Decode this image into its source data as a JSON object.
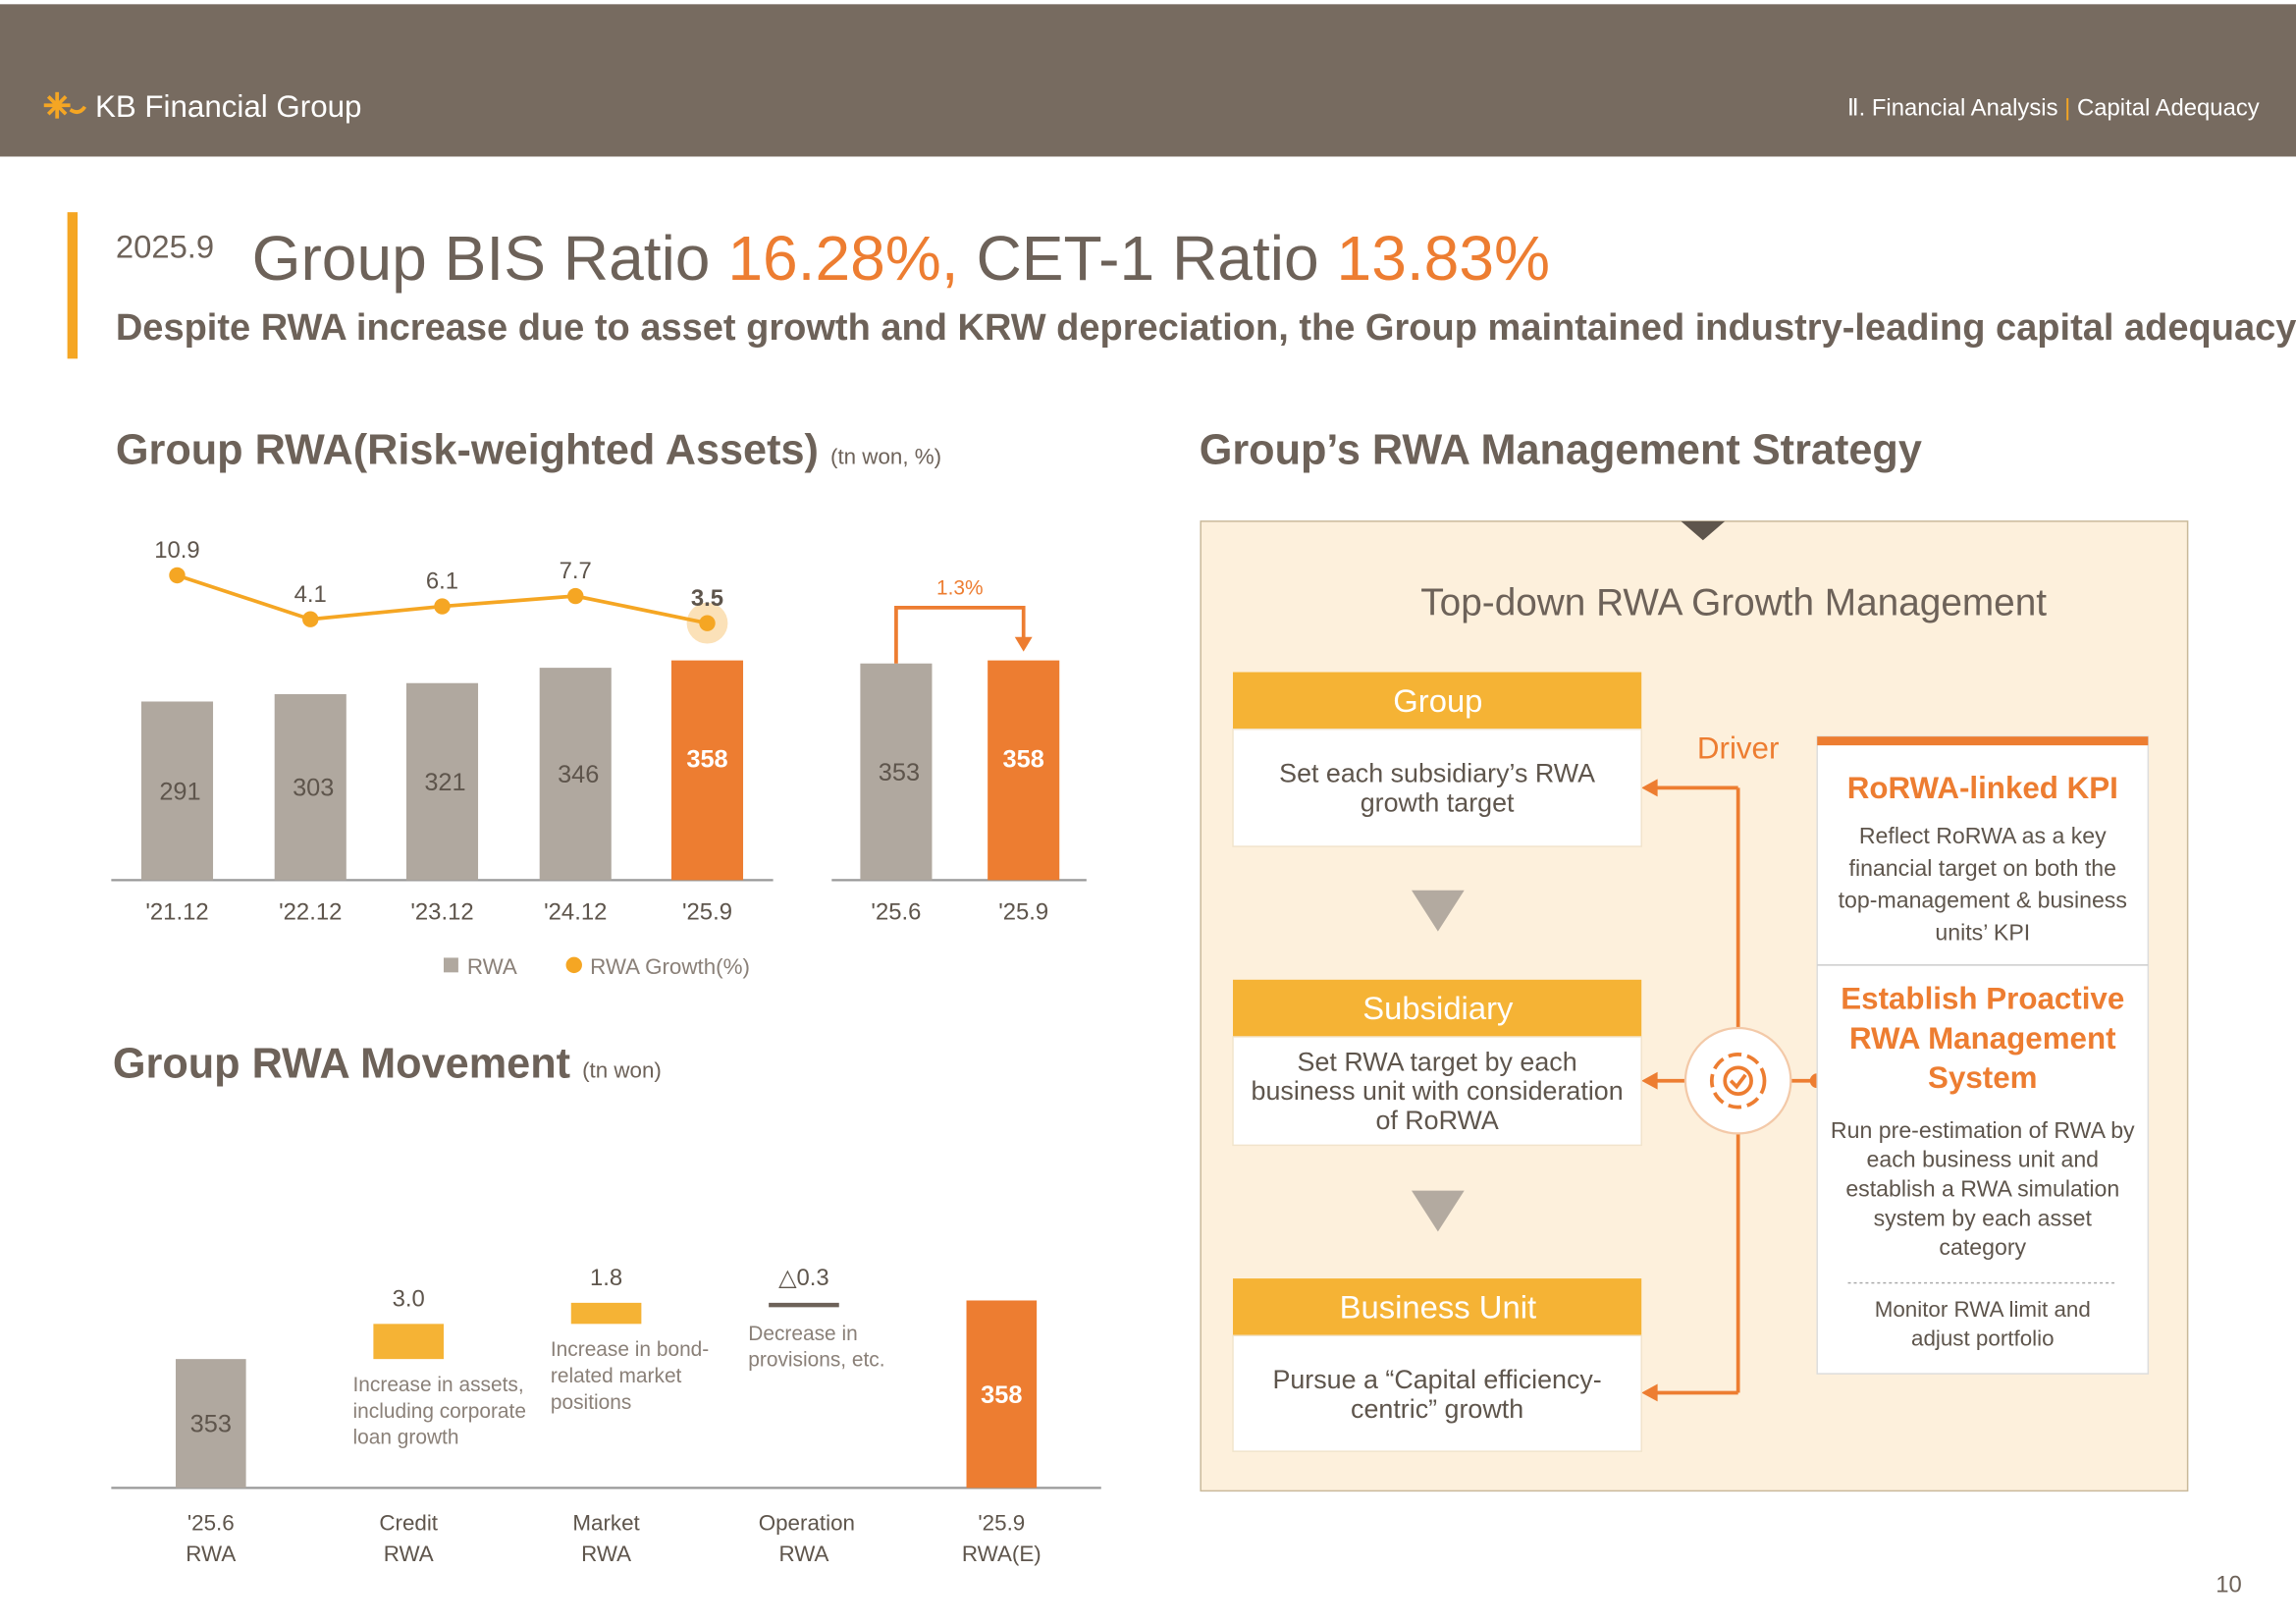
{
  "header": {
    "brand": "KB Financial Group",
    "section": "Ⅱ. Financial Analysis",
    "separator": "|",
    "topic": "Capital Adequacy"
  },
  "headline": {
    "date": "2025.9",
    "label1": "Group BIS Ratio",
    "value1": "16.28%,",
    "label2": "CET-1 Ratio",
    "value2": "13.83%",
    "subtitle": "Despite RWA increase due to asset growth and KRW depreciation, the Group maintained industry-leading capital adequacy"
  },
  "chart_data": [
    {
      "type": "bar",
      "title": "Group RWA(Risk-weighted Assets)",
      "unit": "(tn won, %)",
      "categories": [
        "'21.12",
        "'22.12",
        "'23.12",
        "'24.12",
        "'25.9"
      ],
      "series": [
        {
          "name": "RWA",
          "color": "#b0a89f",
          "colors": [
            "#b0a89f",
            "#b0a89f",
            "#b0a89f",
            "#b0a89f",
            "#ed7d31"
          ],
          "values": [
            291,
            303,
            321,
            346,
            358
          ]
        },
        {
          "name": "RWA Growth(%)",
          "type": "line",
          "color": "#f5a623",
          "values": [
            10.9,
            4.1,
            6.1,
            7.7,
            3.5
          ]
        }
      ]
    },
    {
      "type": "bar",
      "categories": [
        "'25.6",
        "'25.9"
      ],
      "values": [
        353,
        358
      ],
      "colors": [
        "#b0a89f",
        "#ed7d31"
      ],
      "growth_label": "1.3%"
    },
    {
      "type": "waterfall",
      "title": "Group RWA Movement",
      "unit": "(tn won)",
      "categories": [
        "'25.6 RWA",
        "Credit RWA",
        "Market RWA",
        "Operation RWA",
        "'25.9 RWA(E)"
      ],
      "values": [
        353,
        3.0,
        1.8,
        -0.3,
        358
      ],
      "value_labels": [
        "353",
        "3.0",
        "1.8",
        "△0.3",
        "358"
      ],
      "colors": [
        "#b0a89f",
        "#f5b335",
        "#f5b335",
        "#6d6259",
        "#ed7d31"
      ],
      "annotations": [
        "Increase in assets, including corporate loan growth",
        "Increase in bond-related market positions",
        "Decrease in provisions, etc."
      ]
    }
  ],
  "strategy": {
    "title": "Group’s RWA Management Strategy",
    "box_title": "Top-down RWA Growth Management",
    "levels": [
      {
        "title": "Group",
        "text": "Set each subsidiary’s RWA growth target"
      },
      {
        "title": "Subsidiary",
        "text": "Set RWA target by each business unit with consideration of RoRWA"
      },
      {
        "title": "Business Unit",
        "text": "Pursue a “Capital efficiency-centric” growth"
      }
    ],
    "driver": "Driver",
    "kpi": {
      "title": "RoRWA-linked KPI",
      "text": "Reflect RoRWA as a key financial target on both the top-management & business units’ KPI"
    },
    "system": {
      "title": "Establish Proactive RWA Management System",
      "text": "Run pre-estimation of RWA by each business unit and establish a RWA simulation system by each asset category",
      "extra": "Monitor RWA limit and adjust portfolio"
    }
  },
  "page_number": "10"
}
